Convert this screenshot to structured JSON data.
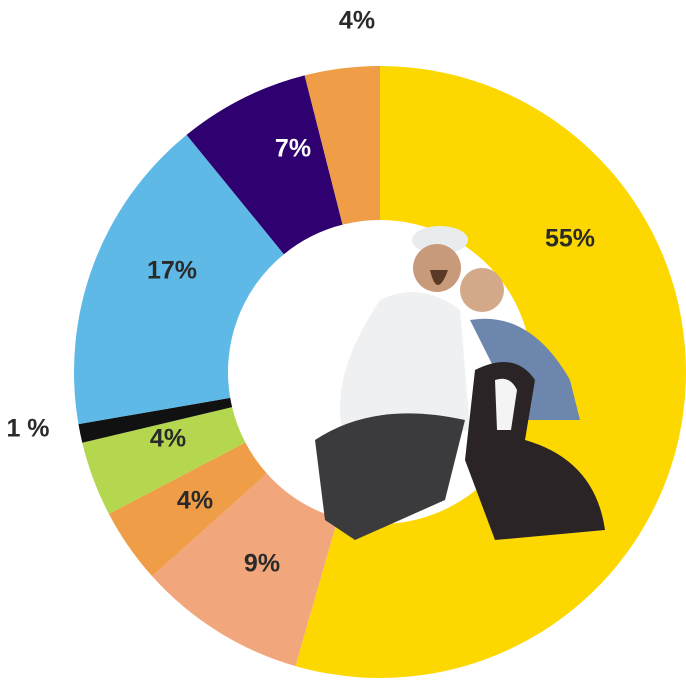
{
  "chart_data": {
    "type": "donut",
    "values": [
      55,
      9,
      4,
      4,
      1,
      17,
      7,
      4
    ],
    "value_labels": [
      "55%",
      "9%",
      "4%",
      "4%",
      "1 %",
      "17%",
      "7%",
      "4%"
    ],
    "colors": [
      "#fcd800",
      "#f2a67c",
      "#ef9d47",
      "#b4d74f",
      "#111111",
      "#5eb9e7",
      "#2f0070",
      "#ef9d47"
    ]
  }
}
